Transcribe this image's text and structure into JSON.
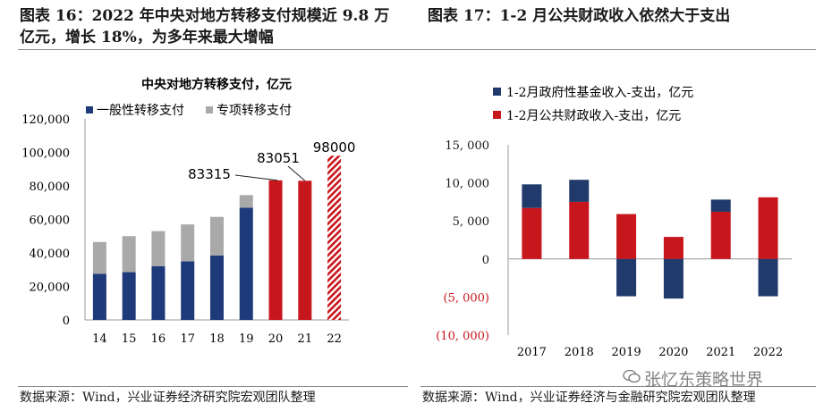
{
  "left_panel": {
    "title_line1": "图表 16：2022 年中央对地方转移支付规模近 9.8 万",
    "title_line2": "亿元，增长 18%，为多年来最大增幅",
    "source": "数据来源：Wind，兴业证券经济研究院宏观团队整理"
  },
  "right_panel": {
    "title": "图表 17：1-2 月公共财政收入依然大于支出",
    "source": "数据来源：Wind，兴业证券经济与金融研究院宏观团队整理"
  },
  "watermark": "张忆东策略世界",
  "chart_data": [
    {
      "type": "bar",
      "stacked": true,
      "title": "中央对地方转移支付，亿元",
      "categories": [
        "14",
        "15",
        "16",
        "17",
        "18",
        "19",
        "20",
        "21",
        "22"
      ],
      "series": [
        {
          "name": "一般性转移支付",
          "color": "#1f3a7a",
          "values": [
            27500,
            28500,
            32000,
            35000,
            38500,
            67000,
            null,
            null,
            null
          ]
        },
        {
          "name": "专项转移支付",
          "color": "#a9a9a9",
          "values": [
            19000,
            21500,
            21000,
            22000,
            23000,
            7500,
            null,
            null,
            null
          ]
        }
      ],
      "totals": [
        {
          "category": "20",
          "value": 83315,
          "color": "#c8161d",
          "style": "solid"
        },
        {
          "category": "21",
          "value": 83051,
          "color": "#c8161d",
          "style": "solid"
        },
        {
          "category": "22",
          "value": 98000,
          "color": "#c8161d",
          "style": "hatched"
        }
      ],
      "data_labels": [
        "83315",
        "83051",
        "98000"
      ],
      "yticks": [
        "0",
        "20,000",
        "40,000",
        "60,000",
        "80,000",
        "100,000",
        "120,000"
      ],
      "ylim": [
        0,
        120000
      ],
      "legend_position": "top-left"
    },
    {
      "type": "bar",
      "title": "",
      "categories": [
        "2017",
        "2018",
        "2019",
        "2020",
        "2021",
        "2022"
      ],
      "series": [
        {
          "name": "1-2月政府性基金收入-支出，亿元",
          "color": "#1f3a6b",
          "values": [
            3100,
            2900,
            -4900,
            -5200,
            1600,
            -4900
          ]
        },
        {
          "name": "1-2月公共财政收入-支出，亿元",
          "color": "#c8161d",
          "values": [
            6700,
            7500,
            5900,
            2900,
            6200,
            8100
          ]
        }
      ],
      "yticks": [
        "15, 000",
        "10, 000",
        "5, 000",
        "0",
        "(5, 000)",
        "(10, 000)"
      ],
      "ylim": [
        -10000,
        15000
      ],
      "legend_position": "top"
    }
  ]
}
